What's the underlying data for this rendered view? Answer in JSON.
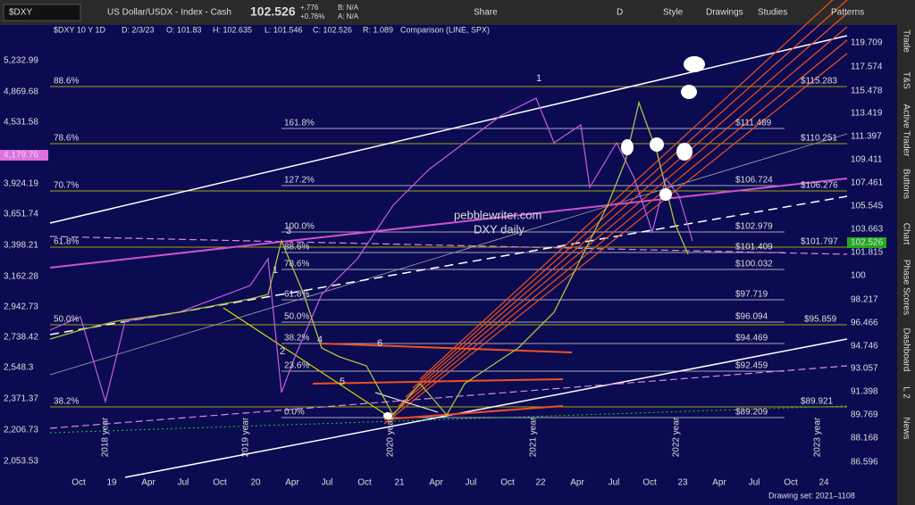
{
  "toolbar": {
    "symbol": "$DXY",
    "title": "US Dollar/USDX - Index - Cash",
    "price": "102.526",
    "change": "+.776",
    "change_pct": "+0.76%",
    "bid": "B: N/A",
    "ask": "A: N/A",
    "buttons": [
      "Share",
      "D",
      "Style",
      "Drawings",
      "Studies",
      "Patterns"
    ]
  },
  "header": {
    "study": "$DXY 10 Y 1D",
    "date": "D: 2/3/23",
    "open": "O: 101.83",
    "high": "H: 102.635",
    "low": "L: 101.546",
    "close": "C: 102.526",
    "range": "R: 1.089",
    "comparison": "Comparison (LINE, SPX)"
  },
  "left_axis": [
    "5,232.99",
    "4,869.68",
    "4,531.58",
    "4,179.76",
    "3,924.19",
    "3,651.74",
    "3,398.21",
    "3,162.28",
    "2,942.73",
    "2,738.42",
    "2,548.3",
    "2,371.37",
    "2,206.73",
    "2,053.53"
  ],
  "right_axis": [
    "119.709",
    "117.574",
    "115.478",
    "113.419",
    "111.397",
    "109.411",
    "107.461",
    "105.545",
    "103.663",
    "102.526",
    "101.815",
    "100",
    "98.217",
    "96.466",
    "94.746",
    "93.057",
    "91.398",
    "89.769",
    "88.168",
    "86.596"
  ],
  "time_axis": [
    "Oct",
    "19",
    "Apr",
    "Jul",
    "Oct",
    "20",
    "Apr",
    "Jul",
    "Oct",
    "21",
    "Apr",
    "Jul",
    "Oct",
    "22",
    "Apr",
    "Jul",
    "Oct",
    "23",
    "Apr",
    "Jul",
    "Oct",
    "24"
  ],
  "year_marks": [
    "2018 year",
    "2019 year",
    "2020 year",
    "2021 year",
    "2022 year",
    "2023 year"
  ],
  "fib_left": [
    "88.6%",
    "78.6%",
    "70.7%",
    "61.8%",
    "50.0%",
    "38.2%"
  ],
  "fib_left_prices": [
    "$115.283",
    "$110.251",
    "$106.276",
    "$101.797",
    "$95.859",
    "$89.921"
  ],
  "fib_mid": [
    "161.8%",
    "127.2%",
    "100.0%",
    "88.6%",
    "78.6%",
    "61.8%",
    "50.0%",
    "38.2%",
    "23.6%",
    "0.0%"
  ],
  "fib_mid_prices": [
    "$111.489",
    "$106.724",
    "$102.979",
    "$101.409",
    "$100.032",
    "$97.719",
    "$96.094",
    "$94.469",
    "$92.459",
    "$89.209"
  ],
  "annotations": {
    "site": "pebblewriter.com",
    "caption": "DXY daily",
    "waves": [
      "1",
      "1",
      "2",
      "3",
      "4",
      "5",
      "6"
    ]
  },
  "side_tabs": [
    "Trade",
    "T&S",
    "Active Trader",
    "Buttons",
    "Chart",
    "Phase Scores",
    "Dashboard",
    "L 2",
    "News"
  ],
  "footer": "Drawing set: 2021–1108"
}
